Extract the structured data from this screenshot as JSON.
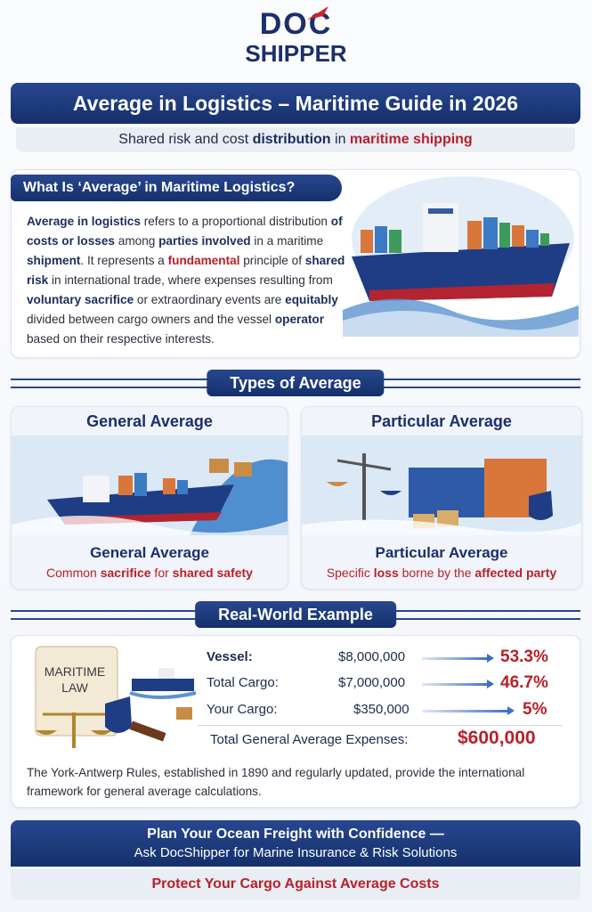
{
  "logo": {
    "line1": "DOC",
    "line2": "SHIPPER"
  },
  "header": {
    "title": "Average in Logistics – Maritime Guide in 2026",
    "subtitle": [
      "Shared risk and cost ",
      "distribution",
      " in ",
      "maritime shipping"
    ]
  },
  "intro": {
    "heading": "What Is ‘Average’ in Maritime Logistics?",
    "paragraph": [
      "Average in logistics",
      " refers to a proportional distribution ",
      "of costs or losses",
      " among ",
      "parties involved",
      " in a maritime ",
      "shipment",
      ". It represents a ",
      "fundamental",
      " principle of ",
      "shared risk",
      " in international trade, where expenses resulting from ",
      "voluntary sacrifice",
      " or extraordinary events are ",
      "equitably",
      " divided between cargo owners and the vessel ",
      "operator",
      " based on their respective interests."
    ]
  },
  "types": {
    "heading": "Types of Average",
    "cards": [
      {
        "title": "General Average",
        "caption_title": "General Average",
        "caption": [
          "Common ",
          "sacrifice",
          " for ",
          "shared safety"
        ]
      },
      {
        "title": "Particular Average",
        "caption_title": "Particular Average",
        "caption": [
          "Specific ",
          "loss",
          " borne by the ",
          "affected party"
        ]
      }
    ]
  },
  "example": {
    "heading": "Real-World Example",
    "law_label": [
      "MARITIME",
      "LAW"
    ],
    "rows": [
      {
        "label": "Vessel:",
        "amount": "$8,000,000",
        "share": "53.3%"
      },
      {
        "label": "Total Cargo:",
        "amount": "$7,000,000",
        "share": "46.7%"
      },
      {
        "label": "Your Cargo:",
        "amount": "$350,000",
        "share": "5%"
      }
    ],
    "total": {
      "label": "Total General Average Expenses:",
      "amount": "$600,000"
    },
    "note": "The York-Antwerp Rules, established in 1890 and regularly updated, provide the international framework for general average calculations."
  },
  "cta": {
    "line1": "Plan Your Ocean Freight with Confidence —",
    "line2": "Ask DocShipper for Marine Insurance & Risk Solutions",
    "button": "Protect Your Cargo Against Average Costs"
  }
}
